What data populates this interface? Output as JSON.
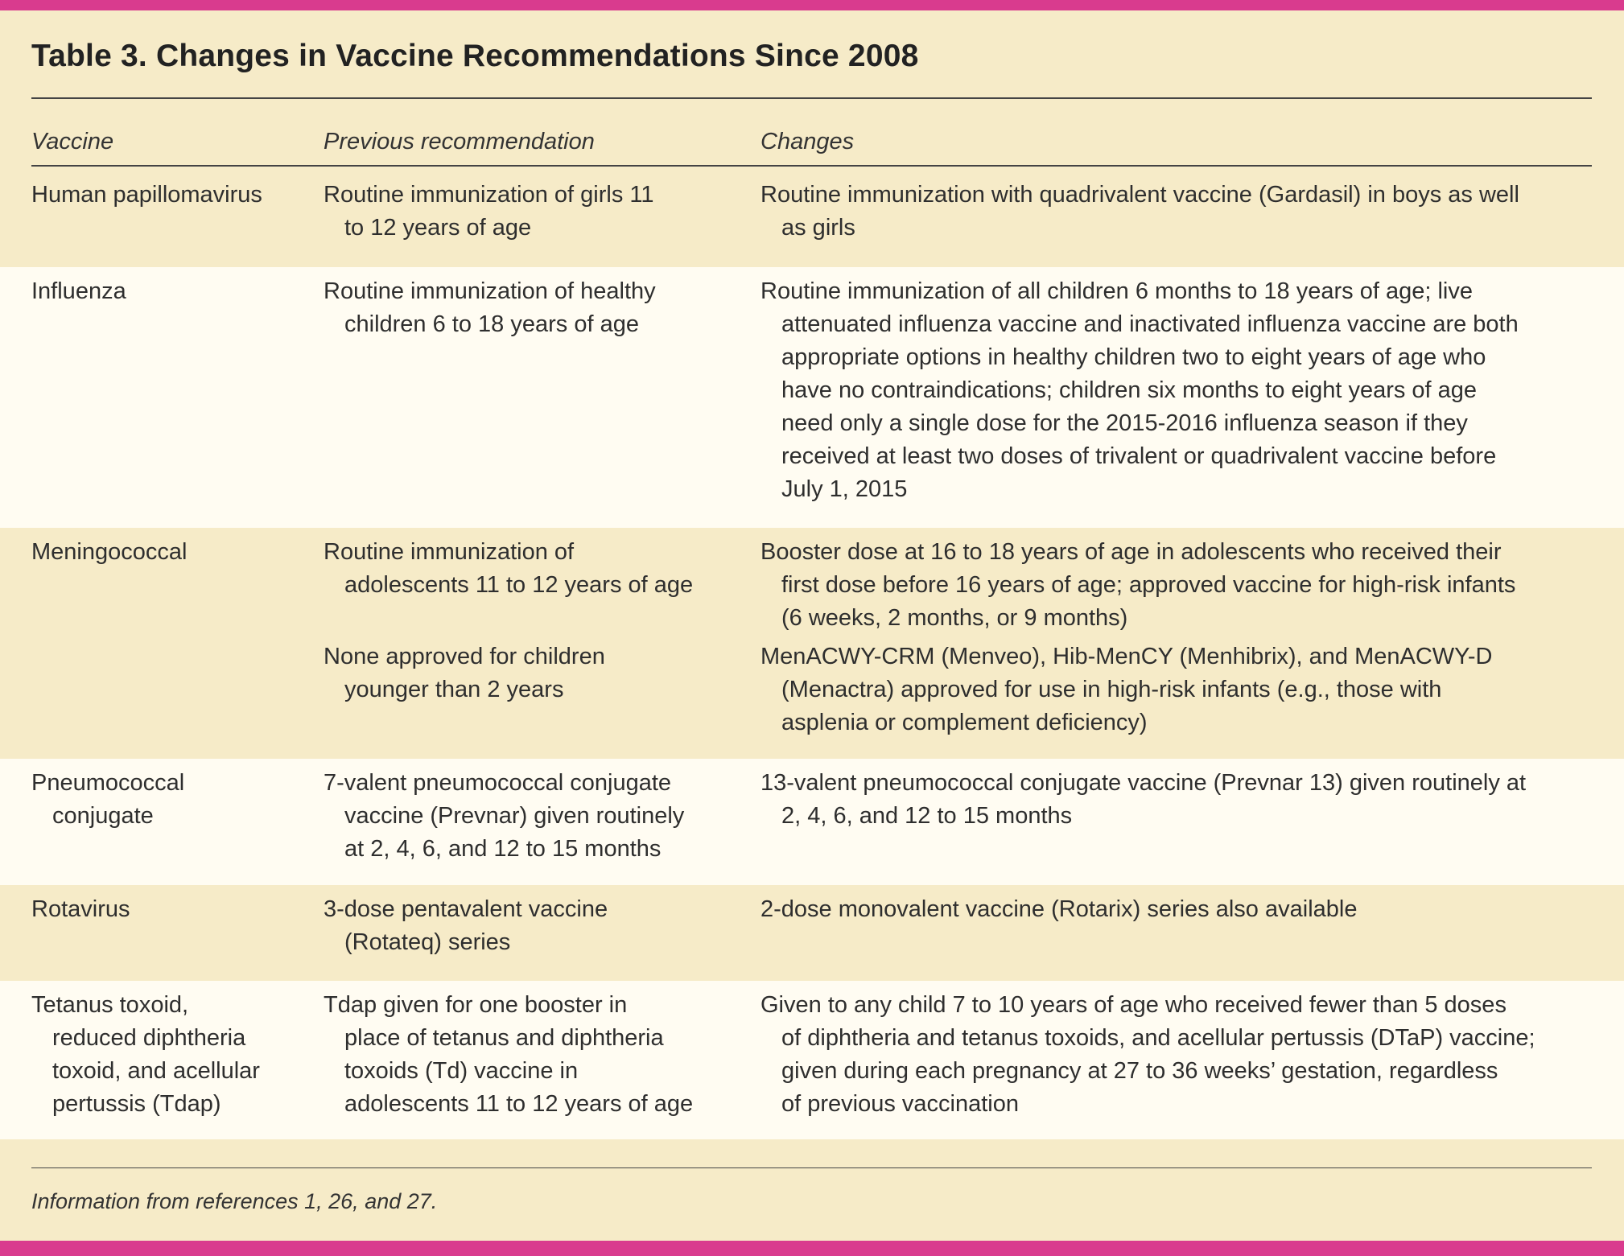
{
  "title": "Table 3. Changes in Vaccine Recommendations Since 2008",
  "colors": {
    "accent": "#d93b8e",
    "shaded_row": "#f6ebc8",
    "background": "#fffcf2"
  },
  "headers": [
    "Vaccine",
    "Previous recommendation",
    "Changes"
  ],
  "rows": [
    {
      "vaccine": [
        "Human papillomavirus"
      ],
      "previous": [
        "Routine immunization of girls 11",
        "to 12 years of age"
      ],
      "changes": [
        "Routine immunization with quadrivalent vaccine (Gardasil) in boys as well",
        "as girls"
      ]
    },
    {
      "vaccine": [
        "Influenza"
      ],
      "previous": [
        "Routine immunization of healthy",
        "children 6 to 18 years of age"
      ],
      "changes": [
        "Routine immunization of all children 6 months to 18 years of age; live",
        "attenuated influenza vaccine and inactivated influenza vaccine are both",
        "appropriate options in healthy children two to eight years of age who",
        "have no contraindications; children six months to eight years of age",
        "need only a single dose for the 2015-2016 influenza season if they",
        "received at least two doses of trivalent or quadrivalent vaccine before",
        "July 1, 2015"
      ]
    },
    {
      "vaccine": [
        "Meningococcal"
      ],
      "previous": [
        "Routine immunization of",
        "adolescents 11 to 12 years of age"
      ],
      "changes": [
        "Booster dose at 16 to 18 years of age in adolescents who received their",
        "first dose before 16 years of age; approved vaccine for high-risk infants",
        "(6 weeks, 2 months, or 9 months)"
      ],
      "previous2": [
        "None approved for children",
        "younger than 2 years"
      ],
      "changes2": [
        "MenACWY-CRM (Menveo), Hib-MenCY (Menhibrix), and MenACWY-D",
        "(Menactra) approved for use in high-risk infants (e.g., those with",
        "asplenia or complement deficiency)"
      ]
    },
    {
      "vaccine": [
        "Pneumococcal",
        "conjugate"
      ],
      "previous": [
        "7-valent pneumococcal conjugate",
        "vaccine (Prevnar) given routinely",
        "at 2, 4, 6, and 12 to 15 months"
      ],
      "changes": [
        "13-valent pneumococcal conjugate vaccine (Prevnar 13) given routinely at",
        "2, 4, 6, and 12 to 15 months"
      ]
    },
    {
      "vaccine": [
        "Rotavirus"
      ],
      "previous": [
        "3-dose pentavalent vaccine",
        "(Rotateq) series"
      ],
      "changes": [
        "2-dose monovalent vaccine (Rotarix) series also available"
      ]
    },
    {
      "vaccine": [
        "Tetanus toxoid,",
        "reduced diphtheria",
        "toxoid, and acellular",
        "pertussis (Tdap)"
      ],
      "previous": [
        "Tdap given for one booster in",
        "place of tetanus and diphtheria",
        "toxoids (Td) vaccine in",
        "adolescents 11 to 12 years of age"
      ],
      "changes": [
        "Given to any child 7 to 10 years of age who received fewer than 5 doses",
        "of diphtheria and tetanus toxoids, and acellular pertussis (DTaP) vaccine;",
        "given during each pregnancy at 27 to 36 weeks’ gestation, regardless",
        "of previous vaccination"
      ]
    }
  ],
  "footnote": "Information from references 1, 26, and 27."
}
